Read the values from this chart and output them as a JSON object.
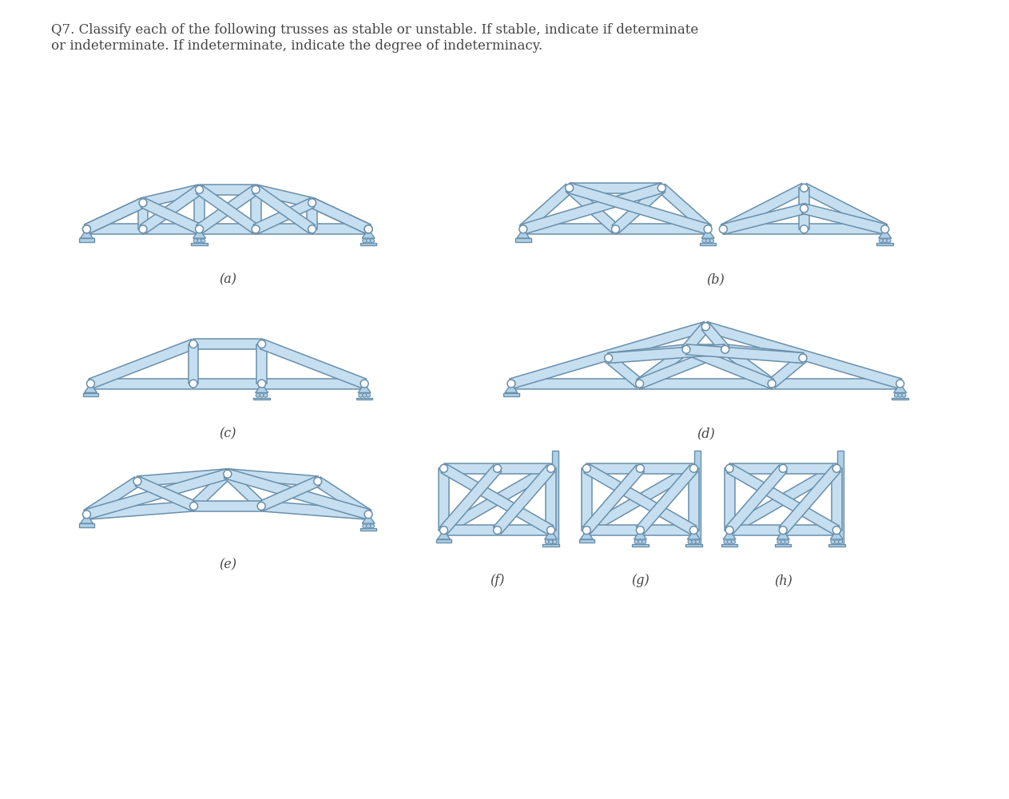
{
  "title_text": "Q7. Classify each of the following trusses as stable or unstable. If stable, indicate if determinate\nor indeterminate. If indeterminate, indicate the degree of indeterminacy.",
  "bg_color": "#ffffff",
  "truss_fill": "#c5dff0",
  "truss_edge": "#6a8faa",
  "support_fill": "#aed0e8",
  "label_color": "#444444",
  "labels": [
    "(a)",
    "(b)",
    "(c)",
    "(d)",
    "(e)",
    "(f)",
    "(g)",
    "(h)"
  ],
  "bw": 0.13
}
